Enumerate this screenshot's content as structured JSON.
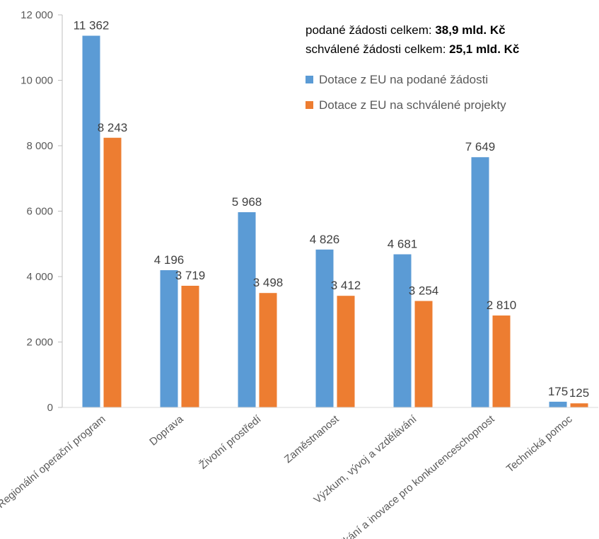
{
  "chart_data": {
    "type": "bar",
    "title": "",
    "xlabel": "",
    "ylabel": "",
    "ylim": [
      0,
      12000
    ],
    "yticks": [
      0,
      2000,
      4000,
      6000,
      8000,
      10000,
      12000
    ],
    "ytick_labels": [
      "0",
      "2 000",
      "4 000",
      "6 000",
      "8 000",
      "10 000",
      "12 000"
    ],
    "grid": false,
    "legend_position": "top-right",
    "categories": [
      "Regionální operační program",
      "Doprava",
      "Životní prostředí",
      "Zaměstnanost",
      "Výzkum, vývoj a vzdělávání",
      "Podnikání a inovace pro konkurenceschopnost",
      "Technická pomoc"
    ],
    "series": [
      {
        "name": "Dotace z EU na podané žádosti",
        "color": "#5B9BD5",
        "values": [
          11362,
          4196,
          5968,
          4826,
          4681,
          7649,
          175
        ],
        "labels": [
          "11 362",
          "4 196",
          "5 968",
          "4 826",
          "4 681",
          "7 649",
          "175"
        ]
      },
      {
        "name": "Dotace z EU na schválené projekty",
        "color": "#ED7D31",
        "values": [
          8243,
          3719,
          3498,
          3412,
          3254,
          2810,
          125
        ],
        "labels": [
          "8 243",
          "3 719",
          "3 498",
          "3 412",
          "3 254",
          "2 810",
          "125"
        ]
      }
    ],
    "annotations": [
      {
        "prefix": "podané žádosti celkem: ",
        "value": "38,9 mld. Kč"
      },
      {
        "prefix": "schválené žádosti celkem: ",
        "value": "25,1 mld. Kč"
      }
    ]
  }
}
